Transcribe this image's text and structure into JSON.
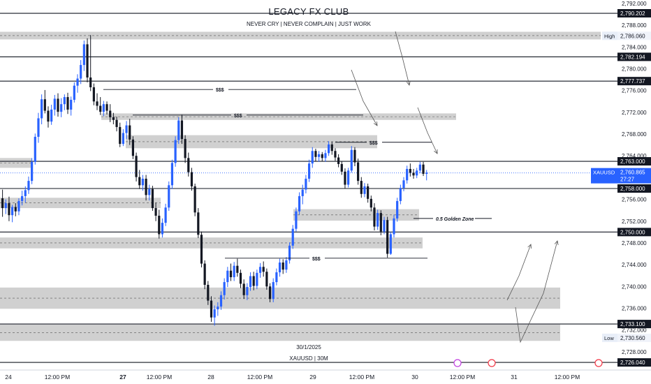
{
  "header": {
    "title": "LEGACY FX CLUB",
    "slogan": "NEVER CRY  | NEVER COMPLAIN  |  JUST WORK",
    "date_note": "30/1/2025",
    "symbol_note": "XAUUSD | 30M"
  },
  "chart_data": {
    "type": "candlestick",
    "symbol": "XAUUSD",
    "timeframe": "30M",
    "ylim": [
      2724.0,
      2792.0
    ],
    "y_ticks": [
      2728,
      2732,
      2736,
      2740,
      2744,
      2748,
      2752,
      2756,
      2760,
      2764,
      2768,
      2772,
      2776,
      2780,
      2784,
      2788,
      2792
    ],
    "x_ticks": [
      "24",
      "12:00 PM",
      "27",
      "12:00 PM",
      "28",
      "12:00 PM",
      "29",
      "12:00 PM",
      "30",
      "12:00 PM",
      "31",
      "12:00 PM"
    ],
    "x_tick_bold": [
      "27"
    ],
    "colors": {
      "up": "#2962ff",
      "down": "#131722",
      "zone": "#c8c8c8",
      "price_tag": "#2962ff"
    },
    "price_level_labels": [
      {
        "price": 2790.202,
        "label": "2,790.202"
      },
      {
        "price": 2782.194,
        "label": "2,782.194"
      },
      {
        "price": 2777.737,
        "label": "2,777.737"
      },
      {
        "price": 2763.0,
        "label": "2,763.000"
      },
      {
        "price": 2758.0,
        "label": "2,758.000"
      },
      {
        "price": 2750.0,
        "label": "2,750.000"
      },
      {
        "price": 2733.1,
        "label": "2,733.100"
      },
      {
        "price": 2726.04,
        "label": "2,726.040"
      }
    ],
    "high": {
      "label": "High",
      "price": 2786.06,
      "value": "2,786.060"
    },
    "low": {
      "label": "Low",
      "price": 2730.56,
      "value": "2,730.560"
    },
    "current": {
      "symbol": "XAUUSD",
      "price": 2760.865,
      "value": "2,760.865",
      "countdown": "27:27"
    },
    "annotations": [
      {
        "text": "$$$",
        "price": 2776.2
      },
      {
        "text": "$$$",
        "price": 2771.5
      },
      {
        "text": "$$$",
        "price": 2766.5
      },
      {
        "text": "$$$",
        "price": 2745.2
      },
      {
        "text": "0.5 Golden Zone",
        "price": 2752.5
      }
    ],
    "zones": [
      [
        2785.4,
        2786.8
      ],
      [
        2770.6,
        2771.8
      ],
      [
        2765.4,
        2767.8
      ],
      [
        2763.6,
        2761.8
      ],
      [
        2754.4,
        2756.3
      ],
      [
        2752.1,
        2754.2
      ],
      [
        2747.0,
        2749.0
      ],
      [
        2735.9,
        2739.8
      ],
      [
        2730.0,
        2733.0
      ]
    ],
    "candles": [
      [
        2756.2,
        2757.8,
        2752.8,
        2754.4
      ],
      [
        2754.4,
        2756.0,
        2753.3,
        2755.3
      ],
      [
        2755.3,
        2756.5,
        2752.0,
        2753.1
      ],
      [
        2753.1,
        2755.0,
        2751.8,
        2754.6
      ],
      [
        2754.6,
        2755.3,
        2752.9,
        2753.8
      ],
      [
        2753.8,
        2756.2,
        2753.1,
        2755.7
      ],
      [
        2755.7,
        2757.6,
        2754.9,
        2756.6
      ],
      [
        2756.6,
        2758.4,
        2755.4,
        2757.7
      ],
      [
        2757.7,
        2760.2,
        2757.0,
        2759.4
      ],
      [
        2759.4,
        2763.6,
        2758.8,
        2762.9
      ],
      [
        2762.9,
        2768.1,
        2762.4,
        2767.5
      ],
      [
        2767.5,
        2771.9,
        2766.4,
        2770.9
      ],
      [
        2770.9,
        2775.3,
        2769.8,
        2774.4
      ],
      [
        2774.4,
        2776.1,
        2771.8,
        2772.3
      ],
      [
        2772.3,
        2773.1,
        2769.2,
        2770.3
      ],
      [
        2770.3,
        2773.4,
        2769.7,
        2772.5
      ],
      [
        2772.5,
        2775.2,
        2771.4,
        2774.5
      ],
      [
        2774.5,
        2775.5,
        2771.2,
        2772.1
      ],
      [
        2772.1,
        2774.6,
        2771.1,
        2773.5
      ],
      [
        2773.5,
        2775.3,
        2772.4,
        2774.8
      ],
      [
        2774.8,
        2775.6,
        2771.7,
        2772.5
      ],
      [
        2772.5,
        2774.9,
        2771.4,
        2774.3
      ],
      [
        2774.3,
        2777.5,
        2773.8,
        2776.9
      ],
      [
        2776.9,
        2779.0,
        2775.6,
        2778.2
      ],
      [
        2778.2,
        2781.6,
        2777.2,
        2780.7
      ],
      [
        2780.7,
        2785.2,
        2779.6,
        2784.5
      ],
      [
        2784.5,
        2785.6,
        2777.5,
        2778.4
      ],
      [
        2778.4,
        2786.2,
        2775.9,
        2776.6
      ],
      [
        2776.6,
        2777.3,
        2773.3,
        2774.0
      ],
      [
        2774.0,
        2775.5,
        2772.4,
        2773.2
      ],
      [
        2773.2,
        2774.8,
        2771.5,
        2772.1
      ],
      [
        2772.1,
        2774.1,
        2771.3,
        2773.5
      ],
      [
        2773.5,
        2774.0,
        2771.6,
        2772.3
      ],
      [
        2772.3,
        2773.5,
        2770.2,
        2771.1
      ],
      [
        2771.1,
        2771.9,
        2769.8,
        2770.6
      ],
      [
        2770.6,
        2771.2,
        2768.5,
        2769.3
      ],
      [
        2769.3,
        2770.1,
        2765.6,
        2766.2
      ],
      [
        2766.2,
        2768.9,
        2765.8,
        2768.2
      ],
      [
        2768.2,
        2770.4,
        2767.1,
        2769.6
      ],
      [
        2769.6,
        2770.8,
        2766.0,
        2767.0
      ],
      [
        2767.0,
        2767.6,
        2763.4,
        2764.0
      ],
      [
        2764.0,
        2764.6,
        2759.3,
        2760.1
      ],
      [
        2760.1,
        2761.4,
        2757.9,
        2758.6
      ],
      [
        2758.6,
        2760.5,
        2757.6,
        2759.8
      ],
      [
        2759.8,
        2760.5,
        2755.8,
        2756.8
      ],
      [
        2756.8,
        2758.7,
        2755.8,
        2757.9
      ],
      [
        2757.9,
        2758.5,
        2753.9,
        2754.4
      ],
      [
        2754.4,
        2755.4,
        2752.0,
        2753.0
      ],
      [
        2753.0,
        2754.1,
        2748.8,
        2749.6
      ],
      [
        2749.6,
        2752.5,
        2749.0,
        2751.7
      ],
      [
        2751.7,
        2755.2,
        2751.1,
        2754.5
      ],
      [
        2754.5,
        2759.3,
        2753.9,
        2758.6
      ],
      [
        2758.6,
        2763.3,
        2757.9,
        2762.7
      ],
      [
        2762.7,
        2767.6,
        2762.0,
        2766.9
      ],
      [
        2766.9,
        2771.1,
        2766.2,
        2770.5
      ],
      [
        2770.5,
        2771.6,
        2766.2,
        2767.1
      ],
      [
        2767.1,
        2767.8,
        2762.7,
        2763.6
      ],
      [
        2763.6,
        2764.6,
        2760.2,
        2761.0
      ],
      [
        2761.0,
        2761.8,
        2757.6,
        2758.4
      ],
      [
        2758.4,
        2758.9,
        2752.9,
        2753.6
      ],
      [
        2753.6,
        2754.4,
        2748.9,
        2749.5
      ],
      [
        2749.5,
        2750.1,
        2743.5,
        2744.2
      ],
      [
        2744.2,
        2744.8,
        2739.5,
        2740.3
      ],
      [
        2740.3,
        2741.0,
        2736.6,
        2737.4
      ],
      [
        2737.4,
        2738.2,
        2733.5,
        2734.3
      ],
      [
        2734.3,
        2736.5,
        2732.8,
        2735.8
      ],
      [
        2735.8,
        2737.1,
        2734.6,
        2736.3
      ],
      [
        2736.3,
        2739.1,
        2735.7,
        2738.4
      ],
      [
        2738.4,
        2741.5,
        2737.6,
        2740.8
      ],
      [
        2740.8,
        2743.6,
        2739.9,
        2742.9
      ],
      [
        2742.9,
        2744.2,
        2741.0,
        2741.7
      ],
      [
        2741.7,
        2744.5,
        2741.0,
        2743.8
      ],
      [
        2743.8,
        2745.1,
        2741.8,
        2742.5
      ],
      [
        2742.5,
        2743.1,
        2739.7,
        2740.5
      ],
      [
        2740.5,
        2741.3,
        2737.7,
        2738.4
      ],
      [
        2738.4,
        2740.6,
        2737.5,
        2739.9
      ],
      [
        2739.9,
        2742.6,
        2739.2,
        2741.9
      ],
      [
        2741.9,
        2742.7,
        2739.3,
        2740.1
      ],
      [
        2740.1,
        2743.1,
        2739.5,
        2742.5
      ],
      [
        2742.5,
        2744.3,
        2741.6,
        2743.6
      ],
      [
        2743.6,
        2744.6,
        2741.8,
        2742.7
      ],
      [
        2742.7,
        2743.3,
        2739.4,
        2740.0
      ],
      [
        2740.0,
        2740.6,
        2737.1,
        2737.7
      ],
      [
        2737.7,
        2741.5,
        2737.1,
        2740.8
      ],
      [
        2740.8,
        2743.3,
        2740.2,
        2742.6
      ],
      [
        2742.6,
        2745.1,
        2741.8,
        2744.4
      ],
      [
        2744.4,
        2745.0,
        2742.3,
        2743.1
      ],
      [
        2743.1,
        2745.4,
        2742.5,
        2744.8
      ],
      [
        2744.8,
        2748.1,
        2744.2,
        2747.5
      ],
      [
        2747.5,
        2751.3,
        2746.9,
        2750.6
      ],
      [
        2750.6,
        2754.5,
        2750.1,
        2753.8
      ],
      [
        2753.8,
        2757.3,
        2753.2,
        2756.6
      ],
      [
        2756.6,
        2758.7,
        2755.1,
        2757.8
      ],
      [
        2757.8,
        2760.5,
        2757.1,
        2759.8
      ],
      [
        2759.8,
        2763.3,
        2759.2,
        2762.6
      ],
      [
        2762.6,
        2765.6,
        2761.8,
        2764.9
      ],
      [
        2764.9,
        2765.3,
        2763.0,
        2763.8
      ],
      [
        2763.8,
        2764.9,
        2762.9,
        2764.3
      ],
      [
        2764.3,
        2764.7,
        2763.0,
        2763.6
      ],
      [
        2763.6,
        2765.1,
        2762.9,
        2764.5
      ],
      [
        2764.5,
        2766.7,
        2764.0,
        2766.1
      ],
      [
        2766.1,
        2766.6,
        2764.2,
        2764.9
      ],
      [
        2764.9,
        2765.4,
        2763.1,
        2763.7
      ],
      [
        2763.7,
        2764.3,
        2761.9,
        2762.5
      ],
      [
        2762.5,
        2763.0,
        2760.5,
        2761.1
      ],
      [
        2761.1,
        2761.7,
        2758.0,
        2758.7
      ],
      [
        2758.7,
        2761.8,
        2758.2,
        2761.3
      ],
      [
        2761.3,
        2765.8,
        2760.9,
        2765.1
      ],
      [
        2765.1,
        2765.6,
        2762.1,
        2762.8
      ],
      [
        2762.8,
        2763.5,
        2758.7,
        2759.4
      ],
      [
        2759.4,
        2760.1,
        2756.3,
        2757.0
      ],
      [
        2757.0,
        2759.0,
        2756.4,
        2758.4
      ],
      [
        2758.4,
        2758.9,
        2755.4,
        2756.1
      ],
      [
        2756.1,
        2756.7,
        2753.8,
        2754.5
      ],
      [
        2754.5,
        2755.3,
        2750.3,
        2751.0
      ],
      [
        2751.0,
        2754.1,
        2750.4,
        2753.5
      ],
      [
        2753.5,
        2754.0,
        2749.4,
        2750.1
      ],
      [
        2750.1,
        2752.8,
        2749.6,
        2752.2
      ],
      [
        2752.2,
        2752.8,
        2745.3,
        2746.0
      ],
      [
        2746.0,
        2750.0,
        2745.8,
        2749.6
      ],
      [
        2749.6,
        2753.2,
        2749.0,
        2752.5
      ],
      [
        2752.5,
        2756.3,
        2751.9,
        2755.7
      ],
      [
        2755.7,
        2758.7,
        2755.1,
        2758.1
      ],
      [
        2758.1,
        2760.1,
        2757.5,
        2759.5
      ],
      [
        2759.5,
        2762.2,
        2758.9,
        2761.6
      ],
      [
        2761.6,
        2762.6,
        2760.2,
        2760.9
      ],
      [
        2760.9,
        2761.6,
        2759.8,
        2760.4
      ],
      [
        2760.4,
        2761.8,
        2759.9,
        2761.3
      ],
      [
        2761.3,
        2762.9,
        2760.8,
        2762.4
      ],
      [
        2762.4,
        2762.9,
        2760.3,
        2760.7
      ],
      [
        2760.7,
        2761.4,
        2759.5,
        2760.9
      ]
    ]
  }
}
